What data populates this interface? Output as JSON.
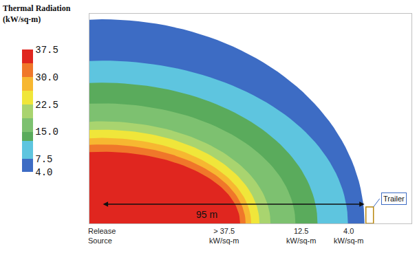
{
  "chart_data": {
    "type": "contour_zones",
    "title": "Thermal Radiation (kW/sq-m)",
    "xlim": [
      -4.5,
      112
    ],
    "ylim": [
      0,
      76
    ],
    "tick_labels": false,
    "grid": false,
    "zones": [
      {
        "level": 4,
        "rx": 95,
        "ry": 74
      },
      {
        "level": 7.5,
        "rx": 89,
        "ry": 59
      },
      {
        "level": 12.5,
        "rx": 78,
        "ry": 51
      },
      {
        "level": 15,
        "rx": 70,
        "ry": 43.5
      },
      {
        "level": 18.75,
        "rx": 61,
        "ry": 37
      },
      {
        "level": 22.5,
        "rx": 57,
        "ry": 34
      },
      {
        "level": 26.25,
        "rx": 54,
        "ry": 31
      },
      {
        "level": 30,
        "rx": 52,
        "ry": 28.6
      },
      {
        "level": 37.5,
        "rx": 50,
        "ry": 26
      }
    ],
    "colorbar": {
      "range": [
        4,
        37.5
      ],
      "ticks": [
        {
          "value": 4,
          "label": "4.0"
        },
        7.5,
        {
          "value": 15,
          "label": "15.0"
        },
        22.5,
        {
          "value": 30,
          "label": "30.0"
        },
        37.5
      ],
      "bands": [
        {
          "from": 4,
          "to": 7.5,
          "color": "#3d6cc4"
        },
        {
          "from": 7.5,
          "to": 12.5,
          "color": "#5ec5df"
        },
        {
          "from": 12.5,
          "to": 15,
          "color": "#5aab5c"
        },
        {
          "from": 15,
          "to": 18.75,
          "color": "#7dc170"
        },
        {
          "from": 18.75,
          "to": 22.5,
          "color": "#a9d46f"
        },
        {
          "from": 22.5,
          "to": 26.25,
          "color": "#f0e63a"
        },
        {
          "from": 26.25,
          "to": 30,
          "color": "#f7b731"
        },
        {
          "from": 30,
          "to": 33.75,
          "color": "#f0772a"
        },
        {
          "from": 33.75,
          "to": 37.5,
          "color": "#e0261f"
        }
      ]
    },
    "distance": 95,
    "distance_label": "95 m",
    "source_label": "Release Source",
    "zone_labels": [
      {
        "level": 37.5,
        "label": "> 37.5 kW/sq-m"
      },
      {
        "level": 12.5,
        "label": "12.5 kW/sq-m"
      },
      {
        "level": 4,
        "label": "4.0 kW/sq-m"
      }
    ],
    "trailer_label": "Trailer"
  }
}
